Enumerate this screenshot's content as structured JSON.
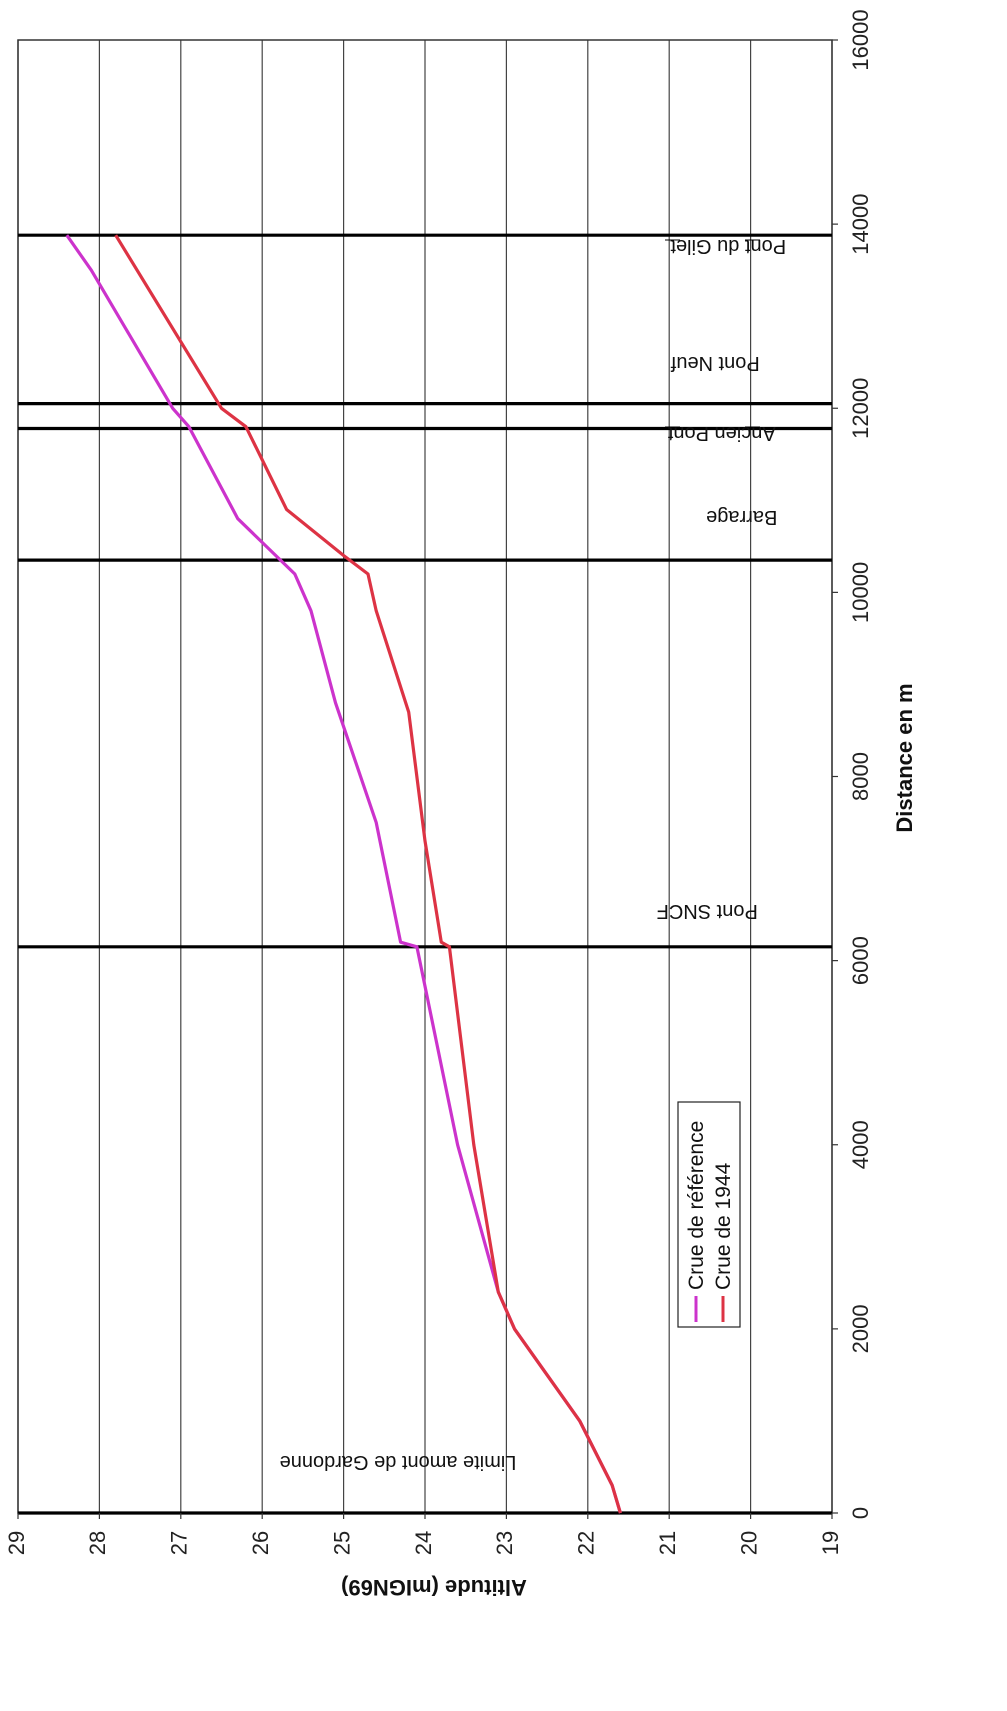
{
  "chart_data": {
    "type": "line",
    "orientation": "rotated-90-clockwise",
    "xlabel": "Distance en m",
    "ylabel": "Altitude (mIGN69)",
    "xlim": [
      0,
      16000
    ],
    "ylim": [
      19,
      29
    ],
    "x_ticks": [
      "0",
      "2000",
      "4000",
      "6000",
      "8000",
      "10000",
      "12000",
      "14000",
      "16000"
    ],
    "y_ticks": [
      "19",
      "20",
      "21",
      "22",
      "23",
      "24",
      "25",
      "26",
      "27",
      "28",
      "29"
    ],
    "grid": true,
    "legend_position": "lower-middle",
    "series": [
      {
        "name": "Crue de référence",
        "color": "#cc33cc",
        "x": [
          0,
          300,
          1000,
          1500,
          2000,
          2400,
          4000,
          6150,
          6200,
          7500,
          8800,
          9800,
          10200,
          10800,
          11800,
          12000,
          13500,
          13880
        ],
        "y": [
          21.6,
          21.7,
          22.1,
          22.5,
          22.9,
          23.1,
          23.6,
          24.1,
          24.3,
          24.6,
          25.1,
          25.4,
          25.6,
          26.3,
          26.9,
          27.1,
          28.1,
          28.4
        ]
      },
      {
        "name": "Crue de 1944",
        "color": "#dd3344",
        "x": [
          0,
          300,
          1000,
          1500,
          2000,
          2400,
          4000,
          6150,
          6200,
          7300,
          8700,
          9800,
          10200,
          10400,
          10900,
          11800,
          12000,
          13880
        ],
        "y": [
          21.6,
          21.7,
          22.1,
          22.5,
          22.9,
          23.1,
          23.4,
          23.7,
          23.8,
          24.0,
          24.2,
          24.6,
          24.7,
          25.0,
          25.7,
          26.2,
          26.5,
          27.8
        ]
      }
    ],
    "vlines": [
      {
        "x": 0,
        "label": "Limite amont de Gardonne"
      },
      {
        "x": 6150,
        "label": "Pont SNCF"
      },
      {
        "x": 10350,
        "label": "Barrage"
      },
      {
        "x": 11780,
        "label": "Ancien Pont"
      },
      {
        "x": 12050,
        "label": "Pont Neuf"
      },
      {
        "x": 13880,
        "label": "Pont du Gilet"
      }
    ]
  }
}
